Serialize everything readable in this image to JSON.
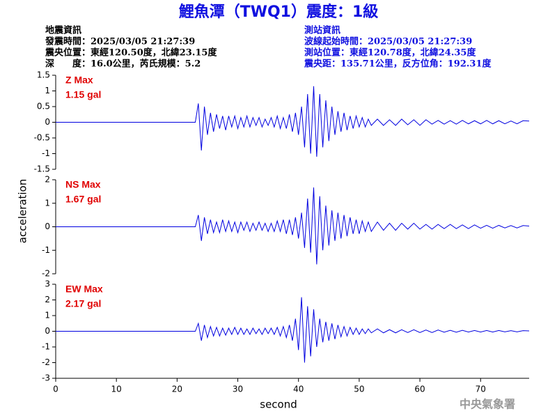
{
  "header": {
    "title": "鯉魚潭（TWQ1）震度：1級",
    "quake_info": [
      "地震資訊",
      "發震時間：2025/03/05 21:27:39",
      "震央位置：東經120.50度，北緯23.15度",
      "深　　度：16.0公里，芮氏規模：5.2"
    ],
    "station_info": [
      "測站資訊",
      "波線起始時間：2025/03/05 21:27:39",
      "測站位置：東經120.78度，北緯24.35度",
      "震央距：135.71公里，反方位角：192.31度"
    ]
  },
  "axes": {
    "xlabel": "second",
    "ylabel": "acceleration"
  },
  "watermark": "中央氣象署",
  "chart_data": [
    {
      "type": "line",
      "label": "Z Max",
      "max_label": "1.15 gal",
      "color": "#0000e0",
      "x": [
        0,
        23,
        23.5,
        24,
        24.5,
        25,
        25.5,
        26,
        26.5,
        27,
        27.5,
        28,
        28.5,
        29,
        29.5,
        30,
        30.5,
        31,
        31.5,
        32,
        32.5,
        33,
        33.5,
        34,
        34.5,
        35,
        35.5,
        36,
        36.5,
        37,
        37.5,
        38,
        38.5,
        39,
        39.5,
        40,
        40.5,
        41,
        41.5,
        42,
        42.5,
        43,
        43.5,
        44,
        44.5,
        45,
        45.5,
        46,
        46.5,
        47,
        47.5,
        48,
        48.5,
        49,
        49.5,
        50,
        50.5,
        51,
        51.5,
        52,
        53,
        54,
        55,
        56,
        57,
        58,
        59,
        60,
        61,
        62,
        63,
        64,
        65,
        66,
        67,
        68,
        69,
        70,
        71,
        72,
        73,
        74,
        75,
        76,
        77,
        78
      ],
      "values": [
        0,
        0,
        0.6,
        -0.9,
        0.5,
        -0.4,
        0.3,
        -0.3,
        0.25,
        -0.2,
        0.2,
        -0.25,
        0.2,
        -0.15,
        0.2,
        -0.2,
        0.15,
        -0.15,
        0.2,
        -0.15,
        0.15,
        -0.1,
        0.15,
        -0.15,
        0.1,
        -0.1,
        0.15,
        -0.15,
        0.2,
        -0.2,
        0.15,
        -0.2,
        0.25,
        -0.3,
        0.3,
        -0.4,
        0.5,
        -0.8,
        0.9,
        -1.0,
        1.15,
        -1.1,
        0.9,
        -0.8,
        0.7,
        -0.6,
        0.5,
        -0.4,
        0.35,
        -0.3,
        0.3,
        -0.25,
        0.2,
        -0.2,
        0.2,
        -0.15,
        0.15,
        -0.15,
        0.1,
        -0.1,
        0.1,
        -0.1,
        0.08,
        -0.1,
        0.1,
        -0.08,
        0.08,
        -0.1,
        0.08,
        -0.06,
        0.06,
        -0.06,
        0.05,
        -0.06,
        0.06,
        -0.05,
        0.05,
        -0.05,
        0.06,
        -0.05,
        0.05,
        -0.05,
        0.04,
        -0.05,
        0.05,
        0.04
      ],
      "xlim": [
        0,
        78
      ],
      "ylim": [
        -1.5,
        1.5
      ],
      "yticks": [
        -1.5,
        -1,
        -0.5,
        0,
        0.5,
        1,
        1.5
      ]
    },
    {
      "type": "line",
      "label": "NS Max",
      "max_label": "1.67 gal",
      "color": "#0000e0",
      "x": [
        0,
        23,
        23.5,
        24,
        24.5,
        25,
        25.5,
        26,
        26.5,
        27,
        27.5,
        28,
        28.5,
        29,
        29.5,
        30,
        30.5,
        31,
        31.5,
        32,
        32.5,
        33,
        33.5,
        34,
        34.5,
        35,
        35.5,
        36,
        36.5,
        37,
        37.5,
        38,
        38.5,
        39,
        39.5,
        40,
        40.5,
        41,
        41.5,
        42,
        42.5,
        43,
        43.5,
        44,
        44.5,
        45,
        45.5,
        46,
        46.5,
        47,
        47.5,
        48,
        48.5,
        49,
        49.5,
        50,
        50.5,
        51,
        51.5,
        52,
        53,
        54,
        55,
        56,
        57,
        58,
        59,
        60,
        61,
        62,
        63,
        64,
        65,
        66,
        67,
        68,
        69,
        70,
        71,
        72,
        73,
        74,
        75,
        76,
        77,
        78
      ],
      "values": [
        0,
        0,
        0.5,
        -0.6,
        0.4,
        -0.3,
        0.3,
        -0.25,
        0.2,
        -0.25,
        0.3,
        -0.2,
        0.25,
        -0.2,
        0.2,
        -0.25,
        0.2,
        -0.15,
        0.2,
        -0.2,
        0.15,
        -0.15,
        0.2,
        -0.15,
        0.15,
        -0.2,
        0.15,
        -0.2,
        0.25,
        -0.2,
        0.3,
        -0.3,
        0.3,
        -0.35,
        0.4,
        -0.5,
        0.6,
        -0.9,
        1.2,
        -1.1,
        1.67,
        -1.6,
        1.3,
        -1.0,
        0.9,
        -0.8,
        0.7,
        -0.6,
        0.6,
        -0.5,
        0.5,
        -0.4,
        0.4,
        -0.3,
        0.3,
        -0.3,
        0.25,
        -0.2,
        0.2,
        -0.2,
        0.2,
        -0.15,
        0.15,
        -0.15,
        0.15,
        -0.1,
        0.15,
        -0.1,
        0.1,
        -0.1,
        0.1,
        -0.08,
        0.1,
        -0.08,
        0.08,
        -0.08,
        0.08,
        -0.06,
        0.06,
        -0.06,
        0.06,
        -0.05,
        0.05,
        -0.05,
        0.05,
        0.03
      ],
      "xlim": [
        0,
        78
      ],
      "ylim": [
        -2,
        2
      ],
      "yticks": [
        -2,
        -1,
        0,
        1,
        2
      ]
    },
    {
      "type": "line",
      "label": "EW Max",
      "max_label": "2.17 gal",
      "color": "#0000e0",
      "x": [
        0,
        23,
        23.5,
        24,
        24.5,
        25,
        25.5,
        26,
        26.5,
        27,
        27.5,
        28,
        28.5,
        29,
        29.5,
        30,
        30.5,
        31,
        31.5,
        32,
        32.5,
        33,
        33.5,
        34,
        34.5,
        35,
        35.5,
        36,
        36.5,
        37,
        37.5,
        38,
        38.5,
        39,
        39.5,
        40,
        40.5,
        41,
        41.5,
        42,
        42.5,
        43,
        43.5,
        44,
        44.5,
        45,
        45.5,
        46,
        46.5,
        47,
        47.5,
        48,
        48.5,
        49,
        49.5,
        50,
        50.5,
        51,
        51.5,
        52,
        53,
        54,
        55,
        56,
        57,
        58,
        59,
        60,
        61,
        62,
        63,
        64,
        65,
        66,
        67,
        68,
        69,
        70,
        71,
        72,
        73,
        74,
        75,
        76,
        77,
        78
      ],
      "values": [
        0,
        0,
        0.5,
        -0.6,
        0.4,
        -0.4,
        0.3,
        -0.3,
        0.25,
        -0.3,
        0.2,
        -0.25,
        0.2,
        -0.2,
        0.25,
        -0.2,
        0.2,
        -0.2,
        0.15,
        -0.2,
        0.2,
        -0.15,
        0.15,
        -0.2,
        0.2,
        -0.15,
        0.2,
        -0.2,
        0.25,
        -0.3,
        0.3,
        -0.4,
        0.4,
        -0.6,
        0.8,
        -1.2,
        2.17,
        -2.0,
        1.6,
        -1.6,
        1.4,
        -1.0,
        0.8,
        -0.7,
        0.6,
        -0.6,
        0.5,
        -0.5,
        0.4,
        -0.35,
        0.3,
        -0.3,
        0.25,
        -0.2,
        0.2,
        -0.2,
        0.15,
        -0.15,
        0.15,
        -0.1,
        0.15,
        -0.1,
        0.1,
        -0.1,
        0.1,
        -0.08,
        0.1,
        -0.08,
        0.08,
        -0.08,
        0.08,
        -0.06,
        0.06,
        -0.06,
        0.06,
        -0.05,
        0.05,
        -0.05,
        0.05,
        -0.05,
        0.05,
        -0.04,
        0.04,
        -0.04,
        0.04,
        0.02
      ],
      "xlim": [
        0,
        78
      ],
      "ylim": [
        -3,
        3
      ],
      "yticks": [
        -3,
        -2,
        -1,
        0,
        1,
        2,
        3
      ],
      "xticks": [
        0,
        10,
        20,
        30,
        40,
        50,
        60,
        70
      ]
    }
  ]
}
